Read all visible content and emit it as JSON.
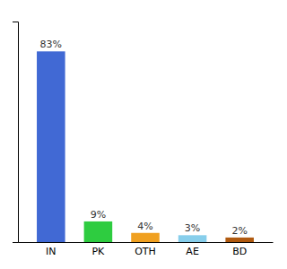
{
  "chart_data": {
    "type": "bar",
    "categories": [
      "IN",
      "PK",
      "OTH",
      "AE",
      "BD"
    ],
    "values": [
      83,
      9,
      4,
      3,
      2
    ],
    "value_labels": [
      "83%",
      "9%",
      "4%",
      "3%",
      "2%"
    ],
    "data_labels": true,
    "colors": [
      "#4169d4",
      "#2ecc40",
      "#f0a020",
      "#87ceeb",
      "#b05a10"
    ],
    "ylim": [
      0,
      96
    ],
    "yticks": [],
    "tick_labels": "x",
    "grid": false
  }
}
